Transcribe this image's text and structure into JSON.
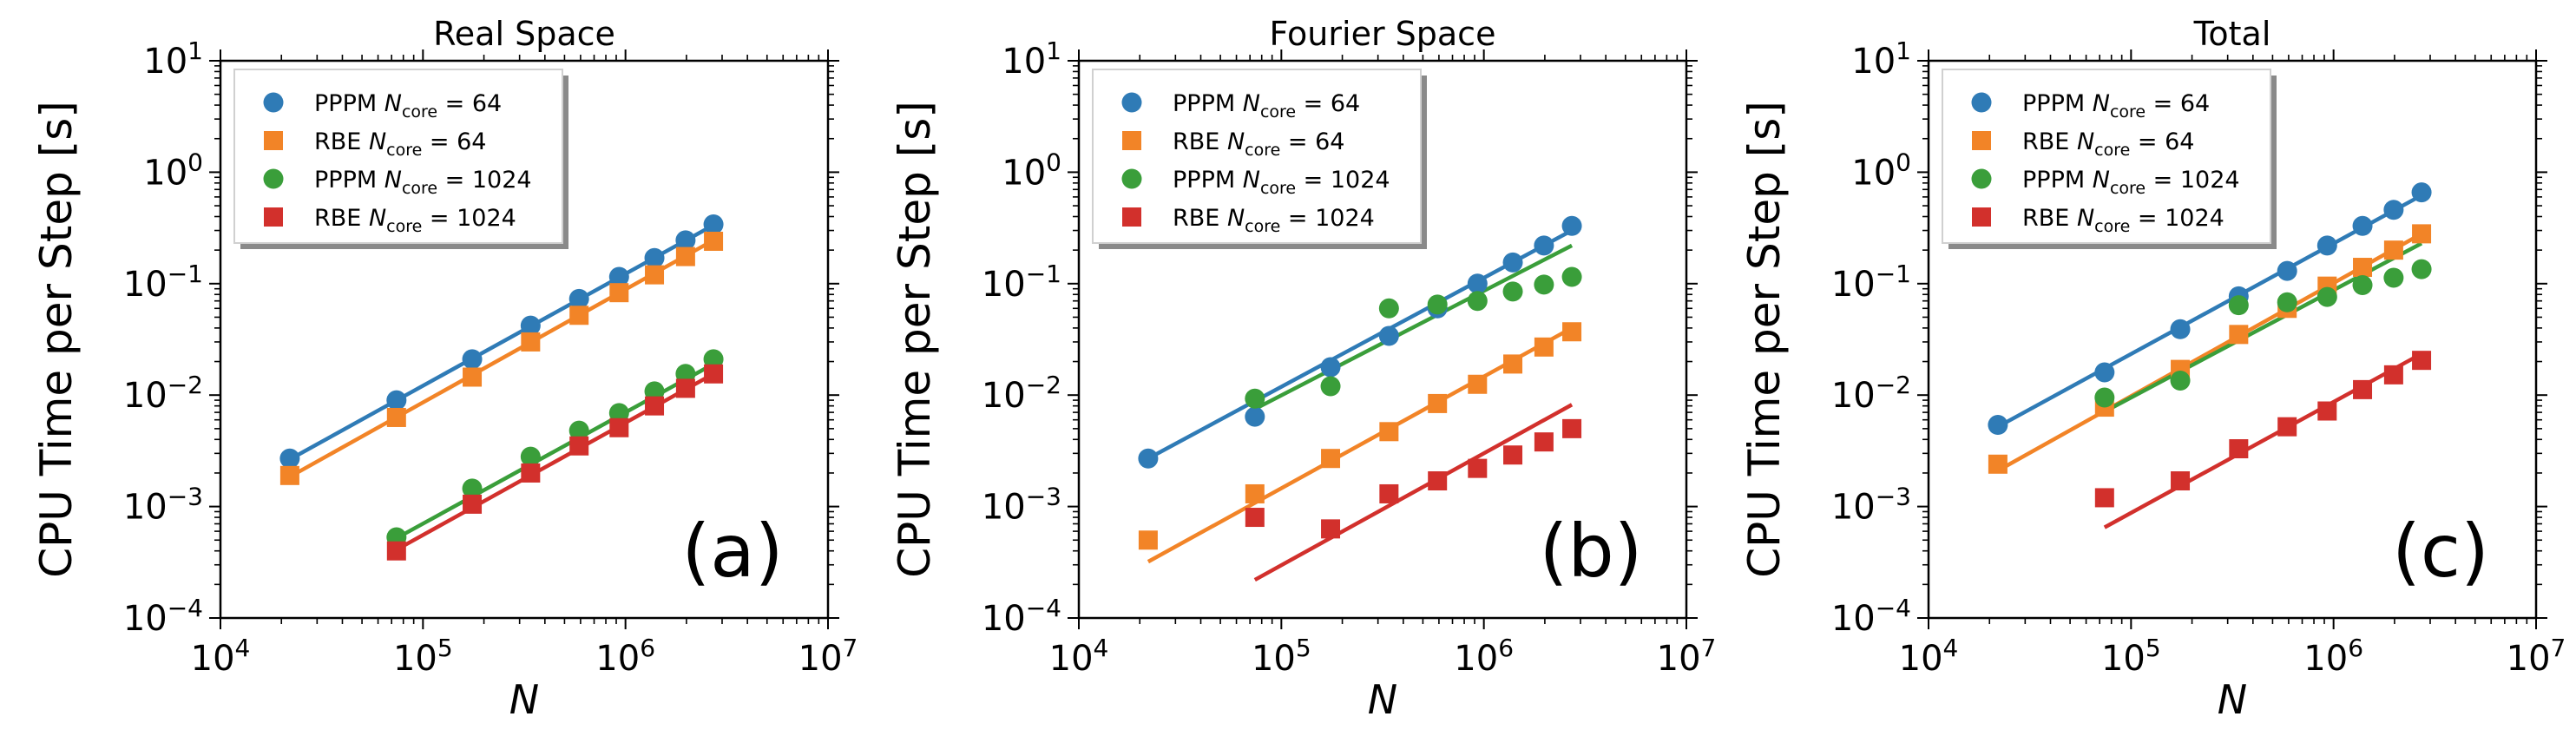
{
  "colors": {
    "PPPM_64": "#2f7bb6",
    "RBE_64": "#f28427",
    "PPPM_1024": "#3a9e3a",
    "RBE_1024": "#d2302c"
  },
  "chart_data": [
    {
      "type": "scatter",
      "panel": "a",
      "title": "Real Space",
      "panel_label": "(a)",
      "xlabel": "N",
      "ylabel": "CPU Time per Step [s]",
      "xscale": "log",
      "yscale": "log",
      "xlim": [
        10000,
        10000000
      ],
      "ylim": [
        0.0001,
        10
      ],
      "grid": false,
      "legend_position": "top-left",
      "series": [
        {
          "name": "PPPM N_core = 64",
          "legend_prefix": "PPPM",
          "legend_core": "64",
          "marker": "circle",
          "color": "#2f7bb6",
          "x": [
            22000,
            74000,
            175000,
            340000,
            590000,
            930000,
            1390000,
            1980000,
            2720000
          ],
          "y": [
            0.0027,
            0.009,
            0.021,
            0.042,
            0.073,
            0.115,
            0.17,
            0.245,
            0.34
          ],
          "fit": [
            [
              22000,
              0.00265
            ],
            [
              2720000,
              0.335
            ]
          ]
        },
        {
          "name": "RBE N_core = 64",
          "legend_prefix": "RBE",
          "legend_core": "64",
          "marker": "square",
          "color": "#f28427",
          "x": [
            22000,
            74000,
            175000,
            340000,
            590000,
            930000,
            1390000,
            1980000,
            2720000
          ],
          "y": [
            0.0019,
            0.0063,
            0.0145,
            0.03,
            0.052,
            0.083,
            0.12,
            0.175,
            0.24
          ],
          "fit": [
            [
              22000,
              0.00185
            ],
            [
              2720000,
              0.245
            ]
          ]
        },
        {
          "name": "PPPM N_core = 1024",
          "legend_prefix": "PPPM",
          "legend_core": "1024",
          "marker": "circle",
          "color": "#3a9e3a",
          "x": [
            74000,
            175000,
            340000,
            590000,
            930000,
            1390000,
            1980000,
            2720000
          ],
          "y": [
            0.00053,
            0.00145,
            0.0028,
            0.0048,
            0.0069,
            0.0108,
            0.0155,
            0.021
          ],
          "fit": [
            [
              74000,
              0.00052
            ],
            [
              2720000,
              0.019
            ]
          ]
        },
        {
          "name": "RBE N_core = 1024",
          "legend_prefix": "RBE",
          "legend_core": "1024",
          "marker": "square",
          "color": "#d2302c",
          "x": [
            74000,
            175000,
            340000,
            590000,
            930000,
            1390000,
            1980000,
            2720000
          ],
          "y": [
            0.0004,
            0.00105,
            0.002,
            0.0035,
            0.0051,
            0.008,
            0.0115,
            0.0155
          ],
          "fit": [
            [
              74000,
              0.00041
            ],
            [
              2720000,
              0.0155
            ]
          ]
        }
      ]
    },
    {
      "type": "scatter",
      "panel": "b",
      "title": "Fourier Space",
      "panel_label": "(b)",
      "xlabel": "N",
      "ylabel": "CPU Time per Step [s]",
      "xscale": "log",
      "yscale": "log",
      "xlim": [
        10000,
        10000000
      ],
      "ylim": [
        0.0001,
        10
      ],
      "grid": false,
      "legend_position": "top-left",
      "series": [
        {
          "name": "PPPM N_core = 64",
          "legend_prefix": "PPPM",
          "legend_core": "64",
          "marker": "circle",
          "color": "#2f7bb6",
          "x": [
            22000,
            74000,
            175000,
            340000,
            590000,
            930000,
            1390000,
            1980000,
            2720000
          ],
          "y": [
            0.0027,
            0.0064,
            0.0178,
            0.034,
            0.06,
            0.1,
            0.155,
            0.22,
            0.33
          ],
          "fit": [
            [
              22000,
              0.0027
            ],
            [
              2720000,
              0.3
            ]
          ]
        },
        {
          "name": "RBE N_core = 64",
          "legend_prefix": "RBE",
          "legend_core": "64",
          "marker": "square",
          "color": "#f28427",
          "x": [
            22000,
            74000,
            175000,
            340000,
            590000,
            930000,
            1390000,
            1980000,
            2720000
          ],
          "y": [
            0.0005,
            0.0013,
            0.0027,
            0.0047,
            0.0084,
            0.0125,
            0.019,
            0.027,
            0.037
          ],
          "fit": [
            [
              22000,
              0.00032
            ],
            [
              2720000,
              0.04
            ]
          ]
        },
        {
          "name": "PPPM N_core = 1024",
          "legend_prefix": "PPPM",
          "legend_core": "1024",
          "marker": "circle",
          "color": "#3a9e3a",
          "x": [
            74000,
            175000,
            340000,
            590000,
            930000,
            1390000,
            1980000,
            2720000
          ],
          "y": [
            0.0093,
            0.012,
            0.06,
            0.065,
            0.07,
            0.085,
            0.098,
            0.115
          ],
          "fit": [
            [
              74000,
              0.0075
            ],
            [
              2720000,
              0.22
            ]
          ]
        },
        {
          "name": "RBE N_core = 1024",
          "legend_prefix": "RBE",
          "legend_core": "1024",
          "marker": "square",
          "color": "#d2302c",
          "x": [
            74000,
            175000,
            340000,
            590000,
            930000,
            1390000,
            1980000,
            2720000
          ],
          "y": [
            0.0008,
            0.00063,
            0.0013,
            0.0017,
            0.0022,
            0.0029,
            0.0038,
            0.005
          ],
          "fit": [
            [
              74000,
              0.00022
            ],
            [
              2720000,
              0.0082
            ]
          ]
        }
      ]
    },
    {
      "type": "scatter",
      "panel": "c",
      "title": "Total",
      "panel_label": "(c)",
      "xlabel": "N",
      "ylabel": "CPU Time per Step [s]",
      "xscale": "log",
      "yscale": "log",
      "xlim": [
        10000,
        10000000
      ],
      "ylim": [
        0.0001,
        10
      ],
      "grid": false,
      "legend_position": "top-left",
      "series": [
        {
          "name": "PPPM N_core = 64",
          "legend_prefix": "PPPM",
          "legend_core": "64",
          "marker": "circle",
          "color": "#2f7bb6",
          "x": [
            22000,
            74000,
            175000,
            340000,
            590000,
            930000,
            1390000,
            1980000,
            2720000
          ],
          "y": [
            0.0054,
            0.016,
            0.039,
            0.077,
            0.13,
            0.22,
            0.33,
            0.46,
            0.66
          ],
          "fit": [
            [
              22000,
              0.0052
            ],
            [
              2720000,
              0.62
            ]
          ]
        },
        {
          "name": "RBE N_core = 64",
          "legend_prefix": "RBE",
          "legend_core": "64",
          "marker": "square",
          "color": "#f28427",
          "x": [
            22000,
            74000,
            175000,
            340000,
            590000,
            930000,
            1390000,
            1980000,
            2720000
          ],
          "y": [
            0.0024,
            0.0078,
            0.017,
            0.035,
            0.06,
            0.095,
            0.14,
            0.2,
            0.28
          ],
          "fit": [
            [
              22000,
              0.0021
            ],
            [
              2720000,
              0.28
            ]
          ]
        },
        {
          "name": "PPPM N_core = 1024",
          "legend_prefix": "PPPM",
          "legend_core": "1024",
          "marker": "circle",
          "color": "#3a9e3a",
          "x": [
            74000,
            175000,
            340000,
            590000,
            930000,
            1390000,
            1980000,
            2720000
          ],
          "y": [
            0.0095,
            0.0135,
            0.064,
            0.068,
            0.076,
            0.097,
            0.113,
            0.135
          ],
          "fit": [
            [
              74000,
              0.0071
            ],
            [
              2720000,
              0.23
            ]
          ]
        },
        {
          "name": "RBE N_core = 1024",
          "legend_prefix": "RBE",
          "legend_core": "1024",
          "marker": "square",
          "color": "#d2302c",
          "x": [
            74000,
            175000,
            340000,
            590000,
            930000,
            1390000,
            1980000,
            2720000
          ],
          "y": [
            0.0012,
            0.0017,
            0.0033,
            0.0052,
            0.0072,
            0.0112,
            0.0152,
            0.0205
          ],
          "fit": [
            [
              74000,
              0.00065
            ],
            [
              2720000,
              0.0235
            ]
          ]
        }
      ]
    }
  ],
  "legend_core_label": "core"
}
